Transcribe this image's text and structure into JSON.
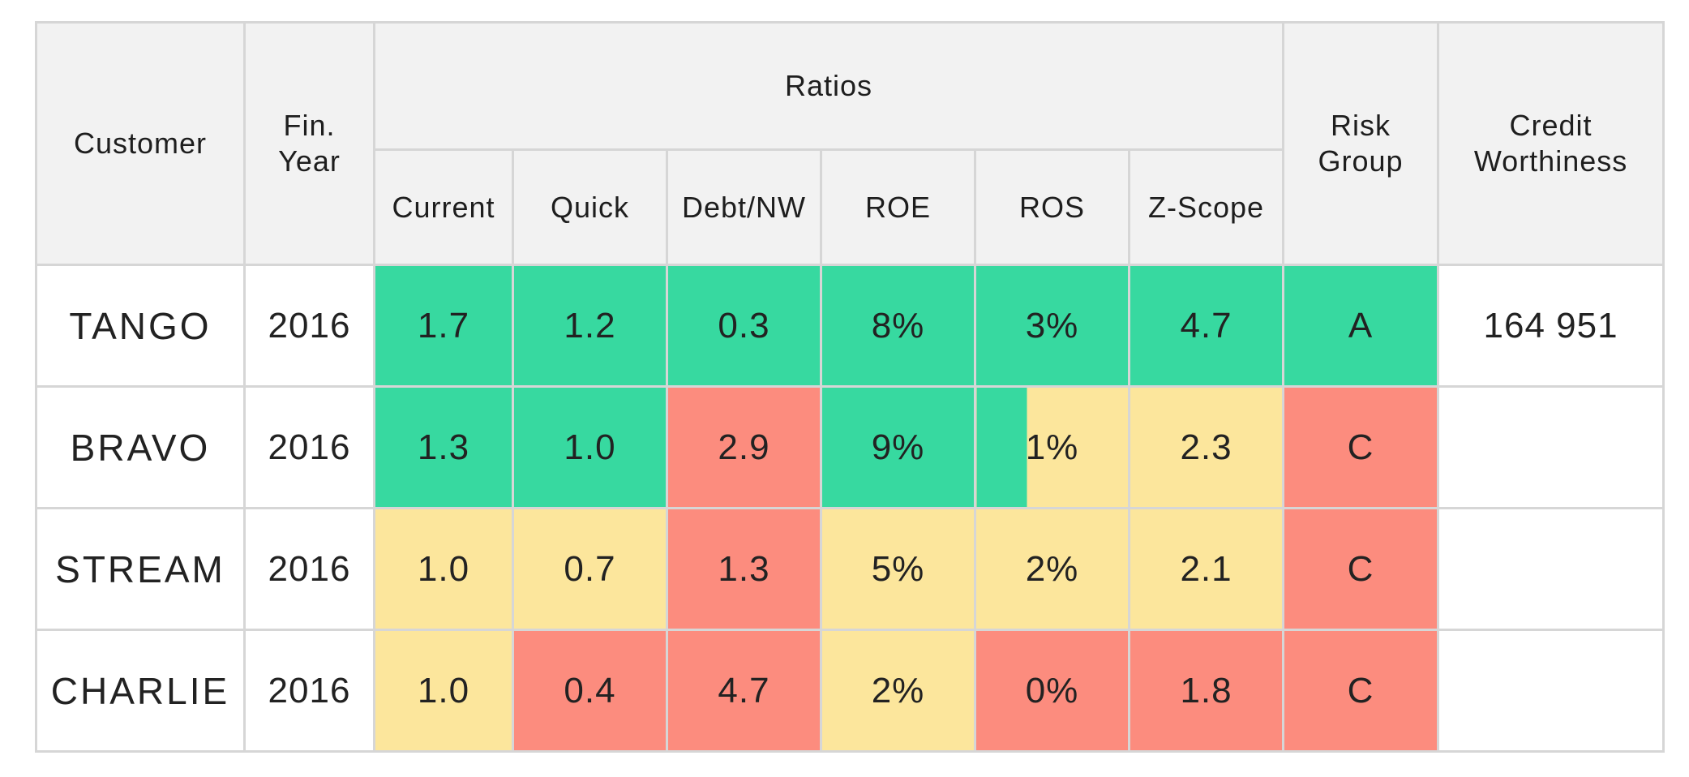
{
  "table": {
    "headers": {
      "customer": "Customer",
      "fin_year_line1": "Fin.",
      "fin_year_line2": "Year",
      "ratios": "Ratios",
      "ratio_columns": [
        "Current",
        "Quick",
        "Debt/NW",
        "ROE",
        "ROS",
        "Z-Scope"
      ],
      "risk_group_line1": "Risk",
      "risk_group_line2": "Group",
      "credit_line1": "Credit",
      "credit_line2": "Worthiness"
    },
    "rows": [
      {
        "customer": "TANGO",
        "year": "2016",
        "current": "1.7",
        "quick": "1.2",
        "debt_nw": "0.3",
        "roe": "8%",
        "ros": "3%",
        "z_scope": "4.7",
        "risk_group": "A",
        "credit": "164 951"
      },
      {
        "customer": "BRAVO",
        "year": "2016",
        "current": "1.3",
        "quick": "1.0",
        "debt_nw": "2.9",
        "roe": "9%",
        "ros": "1%",
        "z_scope": "2.3",
        "risk_group": "C",
        "credit": ""
      },
      {
        "customer": "STREAM",
        "year": "2016",
        "current": "1.0",
        "quick": "0.7",
        "debt_nw": "1.3",
        "roe": "5%",
        "ros": "2%",
        "z_scope": "2.1",
        "risk_group": "C",
        "credit": ""
      },
      {
        "customer": "CHARLIE",
        "year": "2016",
        "current": "1.0",
        "quick": "0.4",
        "debt_nw": "4.7",
        "roe": "2%",
        "ros": "0%",
        "z_scope": "1.8",
        "risk_group": "C",
        "credit": ""
      }
    ]
  },
  "colors": {
    "good": "#37d9a0",
    "medium": "#fce69c",
    "bad": "#fc8c7e",
    "header_bg": "#f2f2f2",
    "grid": "#d6d6d6"
  }
}
